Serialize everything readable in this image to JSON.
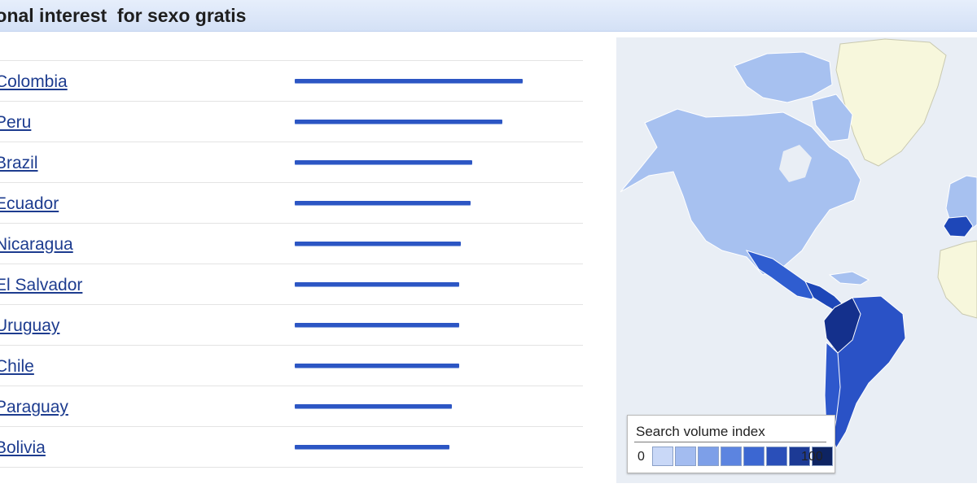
{
  "header": {
    "title": "ional interest  for sexo gratis"
  },
  "regions": [
    {
      "name": "Colombia",
      "value": 100
    },
    {
      "name": "Peru",
      "value": 91
    },
    {
      "name": "Brazil",
      "value": 78
    },
    {
      "name": "Ecuador",
      "value": 77
    },
    {
      "name": "Nicaragua",
      "value": 73
    },
    {
      "name": "El Salvador",
      "value": 72
    },
    {
      "name": "Uruguay",
      "value": 72
    },
    {
      "name": "Chile",
      "value": 72
    },
    {
      "name": "Paraguay",
      "value": 69
    },
    {
      "name": "Bolivia",
      "value": 68
    }
  ],
  "colors": {
    "bar": "#2c56c4",
    "land_low": "#a7c1f0",
    "land_none": "#f7f7dc",
    "ocean": "#e9eef5"
  },
  "legend": {
    "title": "Search volume index",
    "min": "0",
    "max": "100",
    "scale_colors": [
      "#c9d8f7",
      "#a3bcf0",
      "#7d9fe8",
      "#5c84e0",
      "#3c67d2",
      "#2a4fb9",
      "#1c3a95",
      "#0e2462"
    ]
  }
}
